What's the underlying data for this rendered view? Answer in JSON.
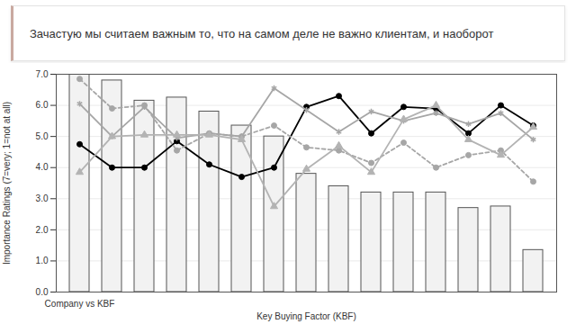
{
  "chart_data": {
    "type": "bar",
    "title": "Зачастую мы считаем важным то, что на самом деле не важно клиентам, и наоборот",
    "x_label": "Key Buying Factor (KBF)",
    "y_label": "Importance Ratings (7=very; 1=not at all)",
    "categories": [
      "Company vs KBF",
      null,
      null,
      null,
      null,
      null,
      null,
      null,
      null,
      null,
      null,
      null,
      null,
      null,
      null
    ],
    "ylim": [
      0,
      7
    ],
    "yticks": [
      {
        "value": 0,
        "label": "0.0"
      },
      {
        "value": 1,
        "label": "1.0"
      },
      {
        "value": 2,
        "label": "2.0"
      },
      {
        "value": 3,
        "label": "3.0"
      },
      {
        "value": 4,
        "label": "4.0"
      },
      {
        "value": 5,
        "label": "5.0"
      },
      {
        "value": 6,
        "label": "6.0"
      },
      {
        "value": 7,
        "label": "7.0"
      }
    ],
    "grid": true,
    "series": [
      {
        "type": "bar",
        "color": "#f2f2f2",
        "values": [
          7.0,
          6.8,
          6.15,
          6.25,
          5.8,
          5.35,
          5.0,
          3.8,
          3.4,
          3.2,
          3.2,
          3.2,
          2.7,
          2.75,
          1.35
        ]
      },
      {
        "type": "line",
        "color": "#000000",
        "marker": "circle",
        "line_style": "solid",
        "values": [
          4.75,
          4.0,
          4.0,
          4.85,
          4.1,
          3.7,
          4.0,
          5.95,
          6.3,
          5.1,
          5.95,
          5.9,
          5.1,
          6.0,
          5.35
        ]
      },
      {
        "type": "line",
        "color": "#a6a6a6",
        "marker": "asterisk",
        "line_style": "solid",
        "values": [
          6.05,
          5.0,
          5.95,
          4.95,
          5.1,
          5.0,
          6.55,
          5.85,
          5.15,
          5.8,
          5.5,
          5.75,
          5.4,
          5.75,
          4.9
        ]
      },
      {
        "type": "line",
        "color": "#a6a6a6",
        "marker": "circle",
        "line_style": "dashed",
        "values": [
          6.85,
          5.9,
          6.0,
          4.55,
          5.1,
          5.0,
          5.35,
          4.65,
          4.55,
          4.15,
          4.8,
          4.0,
          4.4,
          4.55,
          3.55
        ]
      },
      {
        "type": "line",
        "color": "#b3b3b3",
        "marker": "triangle",
        "line_style": "solid",
        "values": [
          3.85,
          5.0,
          5.05,
          5.05,
          5.05,
          4.9,
          2.75,
          3.95,
          4.7,
          3.85,
          5.55,
          6.0,
          4.9,
          4.4,
          5.3
        ]
      }
    ]
  }
}
